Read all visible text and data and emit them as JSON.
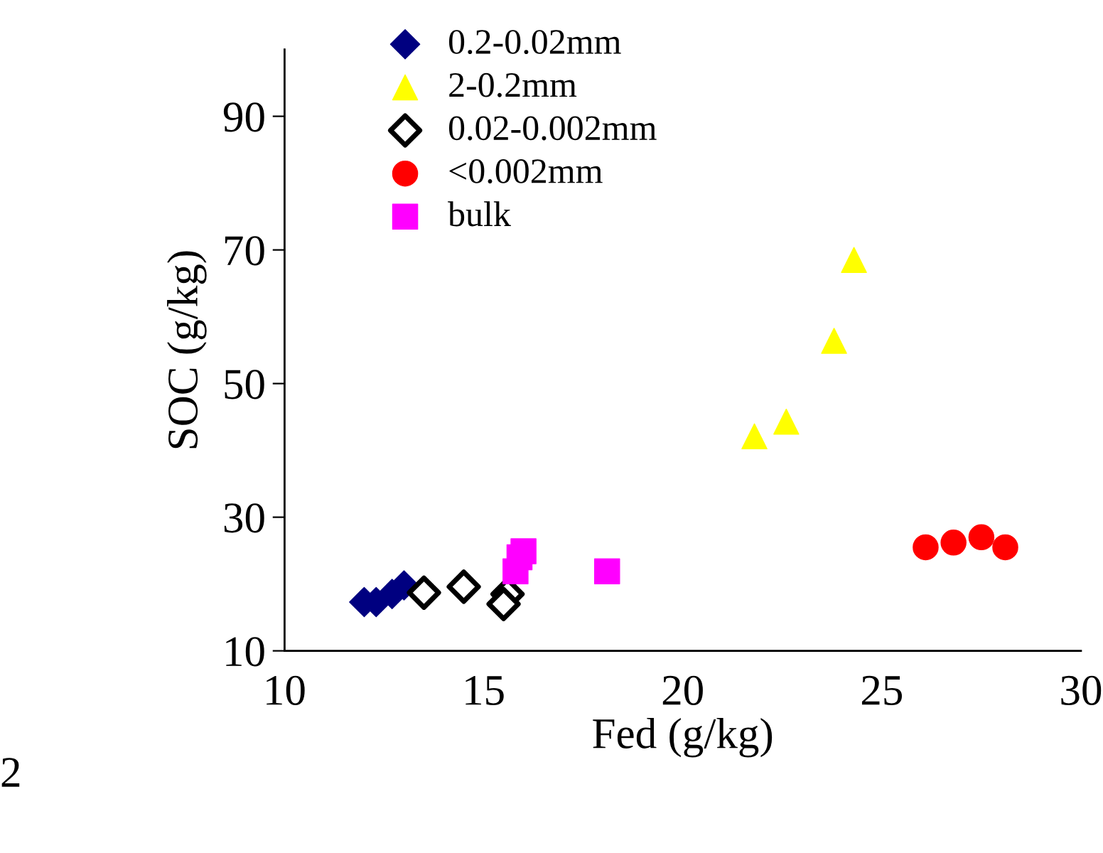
{
  "chart_data": {
    "type": "scatter",
    "xlabel": "Fed (g/kg)",
    "ylabel": "SOC (g/kg)",
    "xlim": [
      10,
      30
    ],
    "xticks": [
      10,
      15,
      20,
      25,
      30
    ],
    "ylim": [
      10,
      100
    ],
    "yticks": [
      10,
      30,
      50,
      70,
      90
    ],
    "legend": "top left",
    "grid": false,
    "annotations": [
      "2"
    ],
    "series": [
      {
        "name": "0.2-0.02mm",
        "color": "#000080",
        "marker": "diamond",
        "x": [
          12.0,
          12.3,
          12.7,
          13.0
        ],
        "values": [
          17.3,
          17.3,
          18.5,
          19.8
        ]
      },
      {
        "name": "2-0.2mm",
        "color": "#ffff00",
        "marker": "triangle",
        "x": [
          24.3,
          23.8,
          22.6,
          21.8
        ],
        "values": [
          68.5,
          56.4,
          44.3,
          42.1
        ]
      },
      {
        "name": "0.02-0.002mm",
        "color": "#000000",
        "marker": "diamond",
        "x": [
          13.5,
          14.5,
          15.6,
          15.5
        ],
        "values": [
          18.7,
          19.6,
          18.5,
          17.0
        ]
      },
      {
        "name": "<0.002mm",
        "color": "#ff0000",
        "marker": "circle",
        "x": [
          26.1,
          26.8,
          27.5,
          28.1
        ],
        "values": [
          25.5,
          26.2,
          27.0,
          25.5
        ]
      },
      {
        "name": "bulk",
        "color": "#ff00ff",
        "marker": "square",
        "x": [
          16.0,
          15.9,
          15.8,
          18.1
        ],
        "values": [
          24.9,
          24.0,
          21.9,
          21.9
        ]
      }
    ]
  }
}
